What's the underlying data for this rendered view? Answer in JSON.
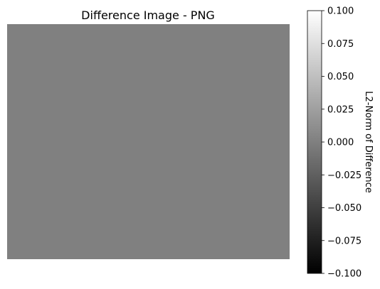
{
  "chart_data": {
    "type": "heatmap",
    "title": "Difference Image - PNG",
    "image": {
      "uniform_value": 0.0,
      "fill_color": "#808080",
      "axes_visible": false
    },
    "colorbar": {
      "label": "L2-Norm of Difference",
      "cmap": "gray",
      "colors": [
        "#000000",
        "#ffffff"
      ],
      "vmin": -0.1,
      "vmax": 0.1,
      "ticks": [
        -0.1,
        -0.075,
        -0.05,
        -0.025,
        0.0,
        0.025,
        0.05,
        0.075,
        0.1
      ],
      "tick_labels": [
        "−0.100",
        "−0.075",
        "−0.050",
        "−0.025",
        "0.000",
        "0.025",
        "0.050",
        "0.075",
        "0.100"
      ]
    }
  }
}
